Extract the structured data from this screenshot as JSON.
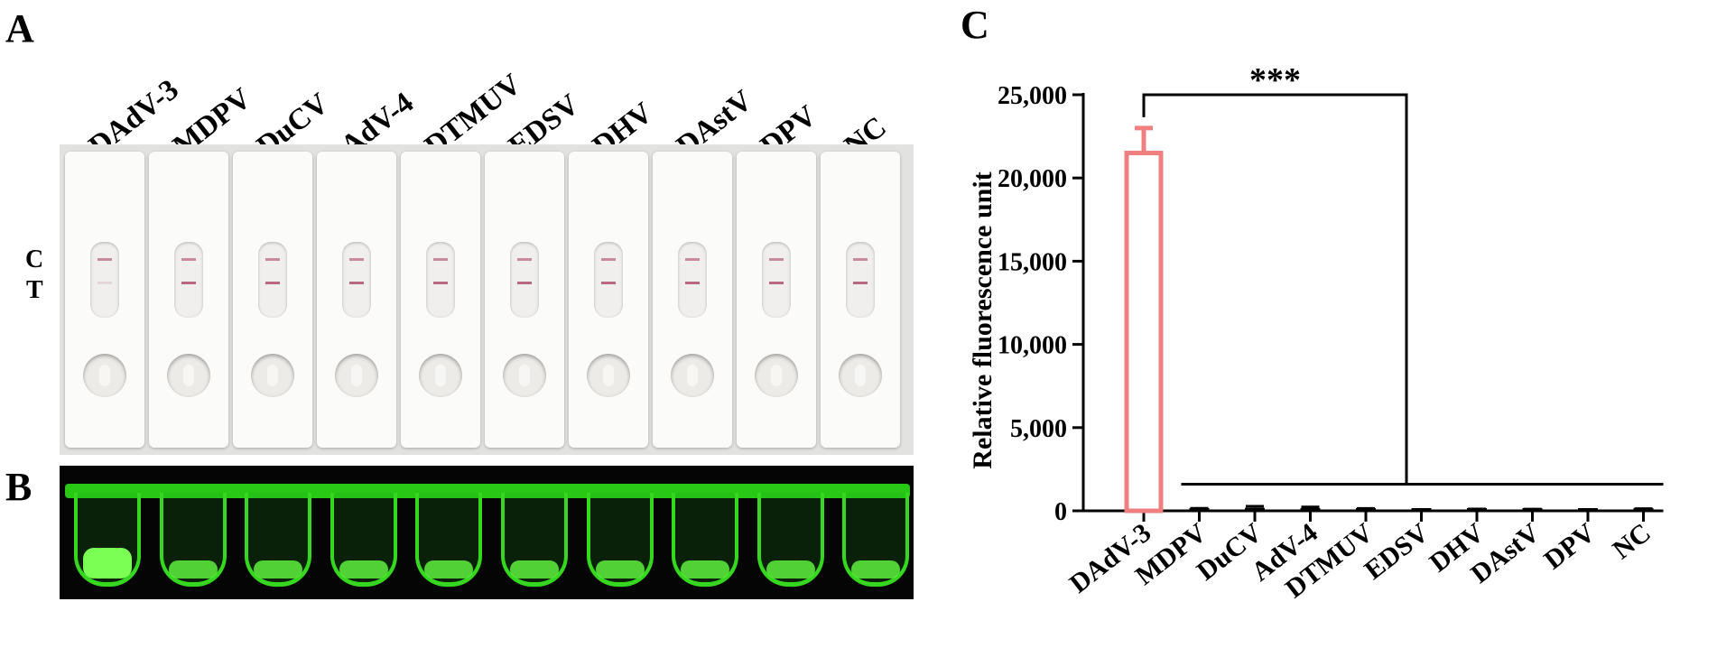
{
  "panel_a": {
    "letter": "A",
    "control_line_label": "C",
    "test_line_label": "T"
  },
  "panel_b": {
    "letter": "B"
  },
  "panel_c": {
    "letter": "C"
  },
  "samples": [
    "DAdV-3",
    "MDPV",
    "DuCV",
    "AdV-4",
    "DTMUV",
    "EDSV",
    "DHV",
    "DAstV",
    "DPV",
    "NC"
  ],
  "strip_results": [
    true,
    false,
    false,
    false,
    false,
    false,
    false,
    false,
    false,
    false
  ],
  "colors": {
    "positive_bar": "#f08080",
    "negative_bar": "#000000",
    "tube_glow": "#36d81f",
    "strip_line": "#b05a74"
  },
  "chart_data": {
    "type": "bar",
    "categories": [
      "DAdV-3",
      "MDPV",
      "DuCV",
      "AdV-4",
      "DTMUV",
      "EDSV",
      "DHV",
      "DAstV",
      "DPV",
      "NC"
    ],
    "values": [
      21500,
      90,
      180,
      150,
      90,
      40,
      70,
      60,
      40,
      80
    ],
    "errors": [
      1500,
      60,
      90,
      80,
      50,
      30,
      40,
      40,
      30,
      50
    ],
    "ylabel": "Relative fluorescence unit",
    "xlabel": "",
    "ylim": [
      0,
      25000
    ],
    "yticks": [
      0,
      5000,
      10000,
      15000,
      20000,
      25000
    ],
    "ytick_labels": [
      "0",
      "5,000",
      "10,000",
      "15,000",
      "20,000",
      "25,000"
    ],
    "significance": "***",
    "grid": false,
    "legend": "none"
  }
}
